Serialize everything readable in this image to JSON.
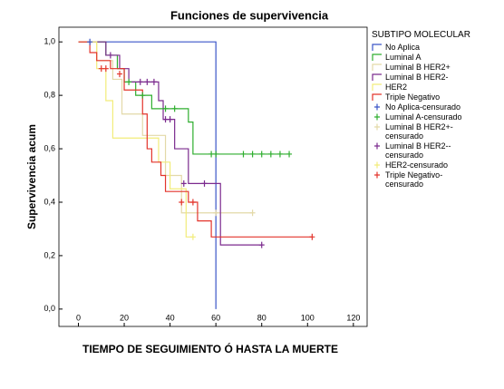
{
  "chart_data": {
    "type": "survival",
    "title": "Funciones de supervivencia",
    "xlabel": "TIEMPO DE SEGUIMIENTO Ó HASTA LA MUERTE",
    "ylabel": "Supervivencia acum",
    "legend_title": "SUBTIPO MOLECULAR",
    "legend": "right",
    "xlim": [
      -8.5,
      126
    ],
    "ylim": [
      -0.065,
      1.055
    ],
    "xticks": [
      0,
      20,
      40,
      60,
      80,
      100,
      120
    ],
    "yticks": [
      {
        "value": 0,
        "label": "0,0"
      },
      {
        "value": 0.2,
        "label": "0,2"
      },
      {
        "value": 0.4,
        "label": "0,4"
      },
      {
        "value": 0.6,
        "label": "0,6"
      },
      {
        "value": 0.8,
        "label": "0,8"
      },
      {
        "value": 1,
        "label": "1,0"
      }
    ],
    "series": [
      {
        "name": "No Aplica",
        "color": "#3a55c8",
        "mark": "line",
        "x": [
          0,
          60
        ],
        "values": [
          1.0,
          0.0
        ]
      },
      {
        "name": "Luminal A",
        "color": "#2fae2f",
        "mark": "line",
        "x": [
          0,
          12,
          17,
          20,
          25,
          32,
          48,
          50
        ],
        "values": [
          1.0,
          0.95,
          0.9,
          0.85,
          0.8,
          0.75,
          0.7,
          0.58
        ]
      },
      {
        "name": "Luminal B HER2+",
        "color": "#e3d9a8",
        "mark": "line",
        "x": [
          0,
          8,
          15,
          19,
          28,
          38,
          45
        ],
        "values": [
          1.0,
          0.93,
          0.86,
          0.73,
          0.65,
          0.5,
          0.36
        ]
      },
      {
        "name": "Luminal B HER2-",
        "color": "#7b2a8e",
        "mark": "line",
        "x": [
          0,
          12,
          18,
          22,
          35,
          37,
          42,
          48,
          62
        ],
        "values": [
          1.0,
          0.95,
          0.9,
          0.85,
          0.78,
          0.71,
          0.6,
          0.47,
          0.24
        ]
      },
      {
        "name": "HER2",
        "color": "#f2ec7a",
        "mark": "line",
        "x": [
          0,
          8,
          12,
          15,
          35,
          40,
          47
        ],
        "values": [
          1.0,
          0.9,
          0.78,
          0.64,
          0.55,
          0.45,
          0.27
        ]
      },
      {
        "name": "Triple Negativo",
        "color": "#e3342b",
        "mark": "line",
        "x": [
          0,
          5,
          8,
          14,
          20,
          28,
          30,
          32,
          36,
          38,
          48,
          52,
          58
        ],
        "values": [
          1.0,
          0.96,
          0.93,
          0.9,
          0.82,
          0.73,
          0.6,
          0.55,
          0.5,
          0.44,
          0.4,
          0.33,
          0.27
        ]
      },
      {
        "name": "No Aplica-censurado",
        "color": "#3a55c8",
        "mark": "plus",
        "x": [
          5
        ],
        "values": [
          1.0
        ]
      },
      {
        "name": "Luminal A-censurado",
        "color": "#2fae2f",
        "mark": "plus",
        "x": [
          22,
          28,
          38,
          42,
          58,
          60,
          72,
          76,
          80,
          84,
          88,
          92
        ],
        "values": [
          0.85,
          0.8,
          0.75,
          0.75,
          0.58,
          0.58,
          0.58,
          0.58,
          0.58,
          0.58,
          0.58,
          0.58
        ]
      },
      {
        "name": "Luminal B HER2+-censurado",
        "color": "#e3d9a8",
        "mark": "plus",
        "x": [
          60,
          76
        ],
        "values": [
          0.36,
          0.36
        ]
      },
      {
        "name": "Luminal B HER2--censurado",
        "color": "#7b2a8e",
        "mark": "plus",
        "x": [
          14,
          27,
          30,
          33,
          38,
          40,
          46,
          55,
          80
        ],
        "values": [
          0.95,
          0.85,
          0.85,
          0.85,
          0.71,
          0.71,
          0.47,
          0.47,
          0.24
        ]
      },
      {
        "name": "HER2-censurado",
        "color": "#f2ec7a",
        "mark": "plus",
        "x": [
          50
        ],
        "values": [
          0.27
        ]
      },
      {
        "name": "Triple Negativo-censurado",
        "color": "#e3342b",
        "mark": "plus",
        "x": [
          10,
          12,
          18,
          45,
          50,
          102
        ],
        "values": [
          0.9,
          0.9,
          0.88,
          0.4,
          0.4,
          0.27
        ]
      }
    ]
  }
}
